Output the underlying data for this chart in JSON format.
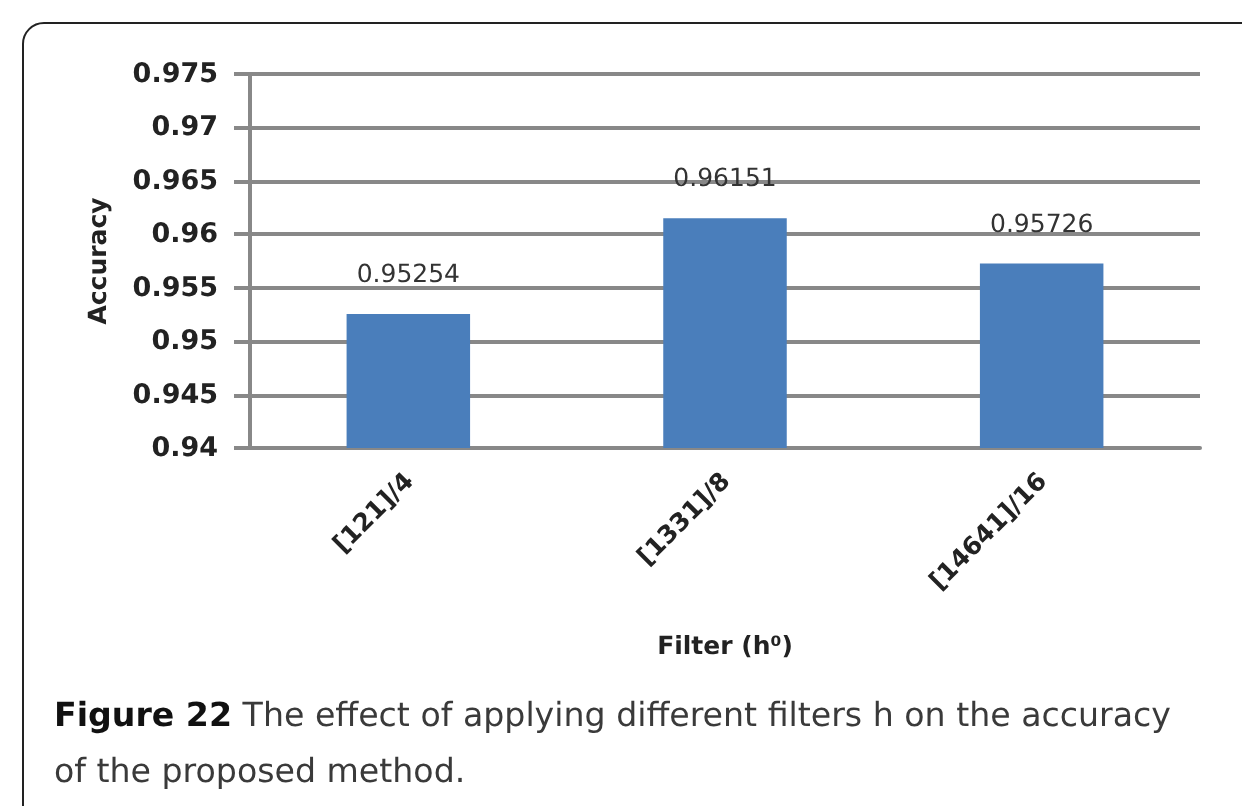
{
  "chart_data": {
    "type": "bar",
    "categories": [
      "[121]/4",
      "[1331]/8",
      "[14641]/16"
    ],
    "values": [
      0.95254,
      0.96151,
      0.95726
    ],
    "color": "#4a7ebb",
    "xlabel": "Filter (h⁰)",
    "ylabel": "Accuracy",
    "ylim": [
      0.94,
      0.975
    ],
    "yticks": [
      0.94,
      0.945,
      0.95,
      0.955,
      0.96,
      0.965,
      0.97,
      0.975
    ],
    "grid": "y",
    "data_labels": true,
    "annotations": [
      "Figure 22 The effect of applying different filters h on the accuracy of the proposed method."
    ]
  }
}
